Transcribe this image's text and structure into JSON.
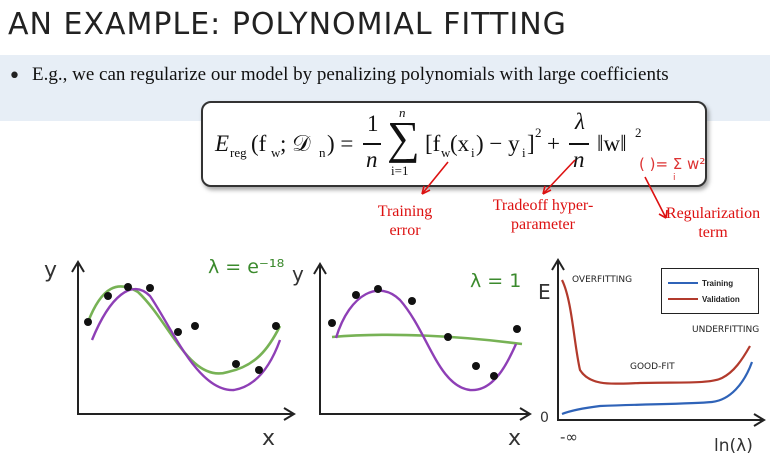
{
  "slide": {
    "title": "AN EXAMPLE: POLYNOMIAL FITTING",
    "bullet": "E.g., we can regularize our model by penalizing polynomials with large coefficients"
  },
  "formula": {
    "lhs_E": "E",
    "lhs_sub": "reg",
    "lhs_args": "(f",
    "lhs_w": "w",
    "lhs_rest": " ; 𝒟",
    "lhs_n": "n",
    "eq": ") =",
    "frac_num": "1",
    "frac_den": "n",
    "sum_top": "n",
    "sum_bottom": "i=1",
    "sigma": "∑",
    "term": "[f",
    "term_w": "w",
    "term_rest": "(x",
    "term_i": "i",
    "term_rest2": ") − y",
    "term_i2": "i",
    "term_close": "]",
    "sq": "2",
    "plus": "+",
    "lambda_num": "λ",
    "lambda_den": "n",
    "norm": "‖w‖",
    "norm_sq": "2",
    "annotation": "(  )= Σ w²",
    "annotation_sub": "i"
  },
  "labels": {
    "training_error": [
      "Training",
      "error"
    ],
    "tradeoff": [
      "Tradeoff hyper-",
      "parameter"
    ],
    "regularization": [
      "Regularization",
      "term"
    ]
  },
  "plots": {
    "plot1": {
      "y_label": "y",
      "x_label": "x",
      "lambda_label": "λ = e⁻¹⁸"
    },
    "plot2": {
      "y_label": "y",
      "x_label": "x",
      "lambda_label": "λ = 1"
    },
    "plot3": {
      "y_label": "E",
      "x_label": "ln(λ)",
      "x_start": "-∞",
      "zero": "0",
      "overfitting": "OVERFITTING",
      "underfitting": "UNDERFITTING",
      "goodfit": "GOOD-FIT",
      "legend": [
        {
          "name": "Training",
          "color": "#2f63b8"
        },
        {
          "name": "Validation",
          "color": "#b23a2c"
        }
      ]
    }
  },
  "colors": {
    "green": "#77b255",
    "purple": "#8e3fb6",
    "red": "#d11",
    "band": "#e7eef6"
  }
}
